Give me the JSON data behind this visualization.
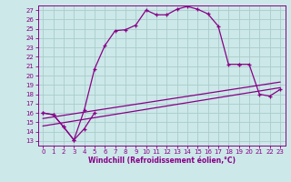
{
  "xlabel": "Windchill (Refroidissement éolien,°C)",
  "bg_color": "#cce8e8",
  "line_color": "#880088",
  "grid_color": "#aacccc",
  "xlim": [
    -0.5,
    23.5
  ],
  "ylim": [
    12.5,
    27.5
  ],
  "xticks": [
    0,
    1,
    2,
    3,
    4,
    5,
    6,
    7,
    8,
    9,
    10,
    11,
    12,
    13,
    14,
    15,
    16,
    17,
    18,
    19,
    20,
    21,
    22,
    23
  ],
  "yticks": [
    13,
    14,
    15,
    16,
    17,
    18,
    19,
    20,
    21,
    22,
    23,
    24,
    25,
    26,
    27
  ],
  "main_curve_x": [
    0,
    1,
    2,
    3,
    4,
    5,
    6,
    7,
    8,
    9,
    10,
    11,
    12,
    13,
    14,
    15,
    16,
    17,
    18,
    19
  ],
  "main_curve_y": [
    16.0,
    15.8,
    14.5,
    13.1,
    16.3,
    20.7,
    23.2,
    24.8,
    24.9,
    25.4,
    27.0,
    26.5,
    26.5,
    27.1,
    27.4,
    27.1,
    26.6,
    25.3,
    21.2,
    21.2
  ],
  "right_curve_x": [
    19,
    20,
    21,
    22,
    23
  ],
  "right_curve_y": [
    21.2,
    21.2,
    18.0,
    17.8,
    18.5
  ],
  "lower_left_x": [
    0,
    1,
    2,
    3,
    4,
    5
  ],
  "lower_left_y": [
    16.0,
    15.8,
    14.5,
    13.1,
    14.3,
    16.0
  ],
  "diag_line1_x": [
    0,
    23
  ],
  "diag_line1_y": [
    14.6,
    18.7
  ],
  "diag_line2_x": [
    0,
    23
  ],
  "diag_line2_y": [
    15.4,
    19.3
  ],
  "xlabel_fontsize": 5.5,
  "tick_fontsize": 5.0
}
